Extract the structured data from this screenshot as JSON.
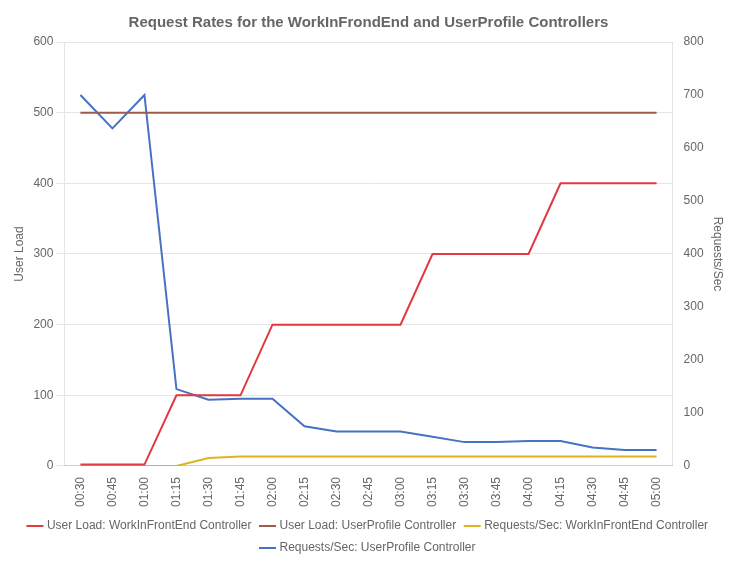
{
  "chart_data": {
    "type": "line",
    "title": "Request Rates for the WorkInFrondEnd and UserProfile Controllers",
    "ylabel": "User Load",
    "y2label": "Requests/Sec",
    "categories": [
      "00:30",
      "00:45",
      "01:00",
      "01:15",
      "01:30",
      "01:45",
      "02:00",
      "02:15",
      "02:30",
      "02:45",
      "03:00",
      "03:15",
      "03:30",
      "03:45",
      "04:00",
      "04:15",
      "04:30",
      "04:45",
      "05:00"
    ],
    "series": [
      {
        "name": "User Load: WorkInFrontEnd Controller",
        "color": "#e0393e",
        "values": [
          2,
          2,
          2,
          100,
          100,
          100,
          200,
          200,
          200,
          200,
          200,
          300,
          300,
          300,
          300,
          400,
          400,
          400,
          400
        ]
      },
      {
        "name": "User Load: UserProfile Controller",
        "color": "#9e5a4a",
        "values": [
          500,
          500,
          500,
          500,
          500,
          500,
          500,
          500,
          500,
          500,
          500,
          500,
          500,
          500,
          500,
          500,
          500,
          500,
          500
        ]
      },
      {
        "name": "Requests/Sec: WorkInFrontEnd Controller",
        "color": "#dab520",
        "axis": "y2",
        "values": [
          0,
          0,
          0,
          0,
          15,
          18,
          18,
          18,
          18,
          18,
          18,
          18,
          18,
          18,
          18,
          18,
          18,
          18,
          18
        ]
      },
      {
        "name": "Requests/Sec: UserProfile Controller",
        "color": "#4472c4",
        "axis": "y2",
        "values": [
          700,
          637,
          700,
          145,
          125,
          127,
          127,
          75,
          65,
          65,
          65,
          55,
          45,
          45,
          47,
          47,
          35,
          30,
          30
        ]
      }
    ],
    "ylim": [
      0,
      600
    ],
    "yticks": [
      0,
      100,
      200,
      300,
      400,
      500,
      600
    ],
    "y2lim": [
      0,
      800
    ],
    "y2ticks": [
      0,
      100,
      200,
      300,
      400,
      500,
      600,
      700,
      800
    ],
    "grid": true,
    "legend": "bottom"
  }
}
